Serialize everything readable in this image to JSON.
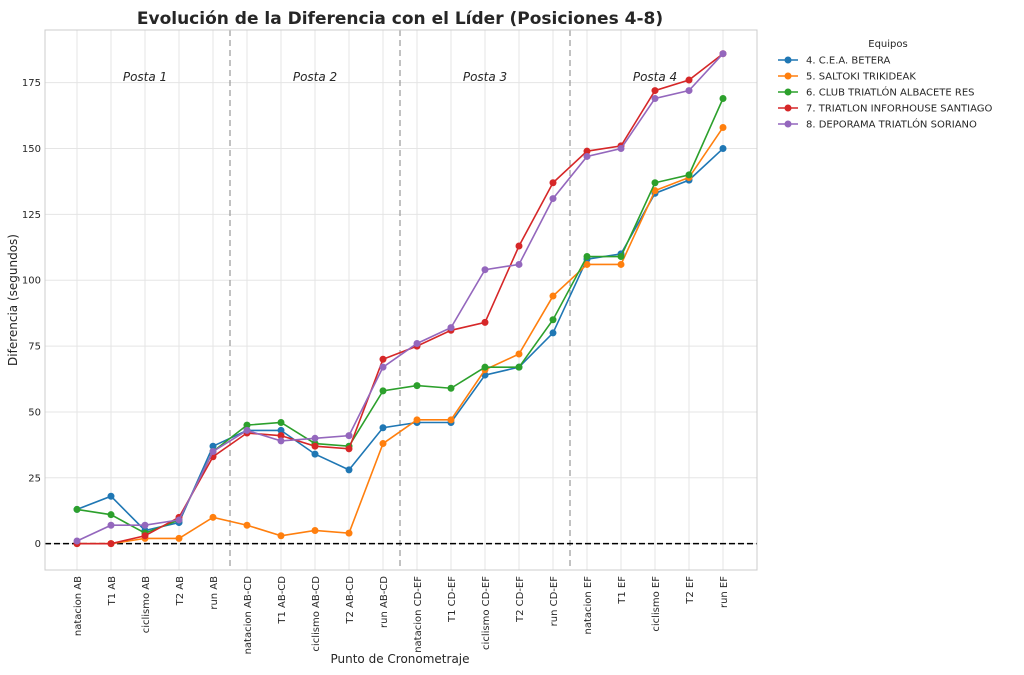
{
  "chart_data": {
    "type": "line",
    "title": "Evolución de la Diferencia con el Líder (Posiciones 4-8)",
    "xlabel": "Punto de Cronometraje",
    "ylabel": "Diferencia (segundos)",
    "ylim": [
      -10,
      195
    ],
    "yticks": [
      0,
      25,
      50,
      75,
      100,
      125,
      150,
      175
    ],
    "grid": true,
    "legend_title": "Equipos",
    "legend_position": "outside-right",
    "categories": [
      "natacion AB",
      "T1 AB",
      "ciclismo AB",
      "T2 AB",
      "run AB",
      "natacion AB-CD",
      "T1 AB-CD",
      "ciclismo AB-CD",
      "T2 AB-CD",
      "run AB-CD",
      "natacion CD-EF",
      "T1 CD-EF",
      "ciclismo CD-EF",
      "T2 CD-EF",
      "run CD-EF",
      "natacion EF",
      "T1 EF",
      "ciclismo EF",
      "T2 EF",
      "run EF"
    ],
    "reference_line": 0,
    "sections": [
      {
        "label": "Posta 1",
        "start_index": 0,
        "end_index": 4
      },
      {
        "label": "Posta 2",
        "start_index": 5,
        "end_index": 9
      },
      {
        "label": "Posta 3",
        "start_index": 10,
        "end_index": 14
      },
      {
        "label": "Posta 4",
        "start_index": 15,
        "end_index": 19
      }
    ],
    "series": [
      {
        "name": "4. C.E.A. BETERA",
        "color": "#1f77b4",
        "values": [
          13,
          18,
          5,
          8,
          37,
          43,
          43,
          34,
          28,
          44,
          46,
          46,
          64,
          67,
          80,
          108,
          110,
          133,
          138,
          150
        ]
      },
      {
        "name": "5. SALTOKI TRIKIDEAK",
        "color": "#ff7f0e",
        "values": [
          0,
          0,
          2,
          2,
          10,
          7,
          3,
          5,
          4,
          38,
          47,
          47,
          66,
          72,
          94,
          106,
          106,
          134,
          139,
          158
        ]
      },
      {
        "name": "6. CLUB TRIATLÓN ALBACETE RES",
        "color": "#2ca02c",
        "values": [
          13,
          11,
          4,
          9,
          35,
          45,
          46,
          38,
          37,
          58,
          60,
          59,
          67,
          67,
          85,
          109,
          109,
          137,
          140,
          169
        ]
      },
      {
        "name": "7. TRIATLON INFORHOUSE SANTIAGO",
        "color": "#d62728",
        "values": [
          0,
          0,
          3,
          10,
          33,
          42,
          41,
          37,
          36,
          70,
          75,
          81,
          84,
          113,
          137,
          149,
          151,
          172,
          176,
          186
        ]
      },
      {
        "name": "8. DEPORAMA TRIATLÓN SORIANO",
        "color": "#9467bd",
        "values": [
          1,
          7,
          7,
          9,
          35,
          43,
          39,
          40,
          41,
          67,
          76,
          82,
          104,
          106,
          131,
          147,
          150,
          169,
          172,
          186
        ]
      }
    ]
  }
}
